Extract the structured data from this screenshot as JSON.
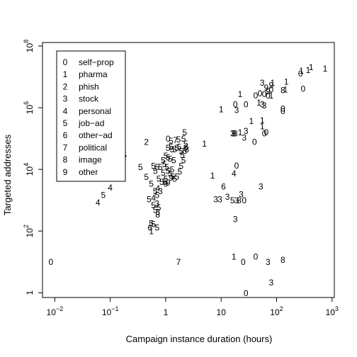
{
  "chart_data": {
    "type": "scatter",
    "marker": "category-digit",
    "xlabel": "Campaign instance duration (hours)",
    "ylabel": "Targeted addresses",
    "xscale": "log10",
    "yscale": "log10",
    "xlim": [
      0.006,
      1100
    ],
    "ylim": [
      0.7,
      130000000
    ],
    "grid": false,
    "legend_position": "top-left",
    "x_ticks": [
      {
        "value": 0.01,
        "base": "10",
        "exp": "−2"
      },
      {
        "value": 0.1,
        "base": "10",
        "exp": "−1"
      },
      {
        "value": 1,
        "base": "1",
        "exp": ""
      },
      {
        "value": 10,
        "base": "10",
        "exp": ""
      },
      {
        "value": 100,
        "base": "10",
        "exp": "2"
      },
      {
        "value": 1000,
        "base": "10",
        "exp": "3"
      }
    ],
    "y_ticks": [
      {
        "value": 1,
        "base": "1",
        "exp": ""
      },
      {
        "value": 100,
        "base": "10",
        "exp": "2"
      },
      {
        "value": 10000,
        "base": "10",
        "exp": "4"
      },
      {
        "value": 1000000,
        "base": "10",
        "exp": "6"
      },
      {
        "value": 100000000,
        "base": "10",
        "exp": "8"
      }
    ],
    "legend": [
      {
        "code": "0",
        "label": "self−prop"
      },
      {
        "code": "1",
        "label": "pharma"
      },
      {
        "code": "2",
        "label": "phish"
      },
      {
        "code": "3",
        "label": "stock"
      },
      {
        "code": "4",
        "label": "personal"
      },
      {
        "code": "5",
        "label": "job−ad"
      },
      {
        "code": "6",
        "label": "other−ad"
      },
      {
        "code": "7",
        "label": "political"
      },
      {
        "code": "8",
        "label": "image"
      },
      {
        "code": "9",
        "label": "other"
      }
    ],
    "points": [
      {
        "x": 0.0085,
        "y": 10,
        "c": "0"
      },
      {
        "x": 28,
        "y": 1,
        "c": "0"
      },
      {
        "x": 25,
        "y": 10,
        "c": "0"
      },
      {
        "x": 42,
        "y": 15,
        "c": "0"
      },
      {
        "x": 17,
        "y": 15,
        "c": "1"
      },
      {
        "x": 70,
        "y": 10,
        "c": "3"
      },
      {
        "x": 130,
        "y": 12,
        "c": "8"
      },
      {
        "x": 80,
        "y": 2.2,
        "c": "3"
      },
      {
        "x": 1.7,
        "y": 10,
        "c": "7"
      },
      {
        "x": 18,
        "y": 250,
        "c": "3"
      },
      {
        "x": 8,
        "y": 1100,
        "c": "3"
      },
      {
        "x": 9.5,
        "y": 1100,
        "c": "3"
      },
      {
        "x": 13,
        "y": 1300,
        "c": "3"
      },
      {
        "x": 16,
        "y": 1000,
        "c": "5"
      },
      {
        "x": 19,
        "y": 1000,
        "c": "3"
      },
      {
        "x": 21,
        "y": 1000,
        "c": "8"
      },
      {
        "x": 23,
        "y": 1600,
        "c": "3"
      },
      {
        "x": 26,
        "y": 1000,
        "c": "0"
      },
      {
        "x": 11,
        "y": 2800,
        "c": "6"
      },
      {
        "x": 52,
        "y": 2800,
        "c": "3"
      },
      {
        "x": 7,
        "y": 6500,
        "c": "1"
      },
      {
        "x": 17,
        "y": 7500,
        "c": "4"
      },
      {
        "x": 19,
        "y": 13500,
        "c": "0"
      },
      {
        "x": 5,
        "y": 70000,
        "c": "1"
      },
      {
        "x": 16,
        "y": 150000,
        "c": "3"
      },
      {
        "x": 17,
        "y": 150000,
        "c": "8"
      },
      {
        "x": 18,
        "y": 150000,
        "c": "8"
      },
      {
        "x": 22,
        "y": 160000,
        "c": "1"
      },
      {
        "x": 28,
        "y": 180000,
        "c": "3"
      },
      {
        "x": 26,
        "y": 110000,
        "c": "3"
      },
      {
        "x": 40,
        "y": 80000,
        "c": "0"
      },
      {
        "x": 55,
        "y": 400000,
        "c": "1"
      },
      {
        "x": 60,
        "y": 150000,
        "c": "0"
      },
      {
        "x": 65,
        "y": 160000,
        "c": "0"
      },
      {
        "x": 35,
        "y": 380000,
        "c": "1"
      },
      {
        "x": 55,
        "y": 250000,
        "c": "1"
      },
      {
        "x": 130,
        "y": 950000,
        "c": "0"
      },
      {
        "x": 130,
        "y": 800000,
        "c": "0"
      },
      {
        "x": 10,
        "y": 900000,
        "c": "1"
      },
      {
        "x": 18,
        "y": 1300000,
        "c": "0"
      },
      {
        "x": 19,
        "y": 850000,
        "c": "3"
      },
      {
        "x": 28,
        "y": 1300000,
        "c": "0"
      },
      {
        "x": 42,
        "y": 2500000,
        "c": "0"
      },
      {
        "x": 50,
        "y": 3000000,
        "c": "0"
      },
      {
        "x": 48,
        "y": 1500000,
        "c": "1"
      },
      {
        "x": 55,
        "y": 1300000,
        "c": "3"
      },
      {
        "x": 60,
        "y": 1200000,
        "c": "3"
      },
      {
        "x": 22,
        "y": 2800000,
        "c": "1"
      },
      {
        "x": 60,
        "y": 2800000,
        "c": "0"
      },
      {
        "x": 70,
        "y": 2500000,
        "c": "0"
      },
      {
        "x": 80,
        "y": 2500000,
        "c": "1"
      },
      {
        "x": 55,
        "y": 6500000,
        "c": "3"
      },
      {
        "x": 65,
        "y": 4500000,
        "c": "9"
      },
      {
        "x": 70,
        "y": 3500000,
        "c": "9"
      },
      {
        "x": 80,
        "y": 5500000,
        "c": "9"
      },
      {
        "x": 85,
        "y": 6500000,
        "c": "1"
      },
      {
        "x": 80,
        "y": 4000000,
        "c": "0"
      },
      {
        "x": 130,
        "y": 3800000,
        "c": "8"
      },
      {
        "x": 145,
        "y": 4000000,
        "c": "1"
      },
      {
        "x": 300,
        "y": 4200000,
        "c": "0"
      },
      {
        "x": 150,
        "y": 7000000,
        "c": "1"
      },
      {
        "x": 270,
        "y": 13000000,
        "c": "0"
      },
      {
        "x": 280,
        "y": 16000000,
        "c": "1"
      },
      {
        "x": 370,
        "y": 17000000,
        "c": "1"
      },
      {
        "x": 420,
        "y": 21000000,
        "c": "1"
      },
      {
        "x": 750,
        "y": 19000000,
        "c": "1"
      },
      {
        "x": 0.18,
        "y": 30000,
        "c": "5"
      },
      {
        "x": 0.15,
        "y": 17000,
        "c": "4"
      },
      {
        "x": 0.1,
        "y": 2600,
        "c": "4"
      },
      {
        "x": 0.075,
        "y": 1500,
        "c": "5"
      },
      {
        "x": 0.06,
        "y": 850,
        "c": "4"
      },
      {
        "x": 0.45,
        "y": 80000,
        "c": "2"
      },
      {
        "x": 0.35,
        "y": 12000,
        "c": "5"
      },
      {
        "x": 0.45,
        "y": 5800,
        "c": "5"
      },
      {
        "x": 0.55,
        "y": 3500,
        "c": "5"
      },
      {
        "x": 0.5,
        "y": 1100,
        "c": "5"
      },
      {
        "x": 0.6,
        "y": 1200,
        "c": "4"
      },
      {
        "x": 0.55,
        "y": 180,
        "c": "5"
      },
      {
        "x": 0.52,
        "y": 130,
        "c": "6"
      },
      {
        "x": 0.55,
        "y": 100,
        "c": "1"
      },
      {
        "x": 0.6,
        "y": 170,
        "c": "5"
      },
      {
        "x": 0.7,
        "y": 130,
        "c": "5"
      },
      {
        "x": 0.6,
        "y": 700,
        "c": "5"
      },
      {
        "x": 0.65,
        "y": 500,
        "c": "5"
      },
      {
        "x": 0.72,
        "y": 420,
        "c": "3"
      },
      {
        "x": 0.7,
        "y": 1500,
        "c": "5"
      },
      {
        "x": 0.65,
        "y": 2000,
        "c": "5"
      },
      {
        "x": 0.72,
        "y": 2500,
        "c": "4"
      },
      {
        "x": 0.6,
        "y": 13000,
        "c": "5"
      },
      {
        "x": 0.65,
        "y": 9000,
        "c": "5"
      },
      {
        "x": 0.7,
        "y": 12000,
        "c": "5"
      },
      {
        "x": 0.8,
        "y": 12000,
        "c": "5"
      },
      {
        "x": 0.9,
        "y": 8000,
        "c": "5"
      },
      {
        "x": 0.85,
        "y": 4000,
        "c": "5"
      },
      {
        "x": 0.95,
        "y": 4000,
        "c": "5"
      },
      {
        "x": 0.75,
        "y": 5000,
        "c": "5"
      },
      {
        "x": 1.0,
        "y": 5000,
        "c": "5"
      },
      {
        "x": 1.0,
        "y": 3500,
        "c": "9"
      },
      {
        "x": 1.1,
        "y": 3800,
        "c": "9"
      },
      {
        "x": 0.8,
        "y": 2000,
        "c": "3"
      },
      {
        "x": 0.7,
        "y": 800,
        "c": "3"
      },
      {
        "x": 0.75,
        "y": 600,
        "c": "5"
      },
      {
        "x": 0.72,
        "y": 350,
        "c": "8"
      },
      {
        "x": 0.9,
        "y": 20000,
        "c": "5"
      },
      {
        "x": 0.95,
        "y": 15000,
        "c": "5"
      },
      {
        "x": 1.05,
        "y": 12000,
        "c": "5"
      },
      {
        "x": 1.1,
        "y": 9000,
        "c": "5"
      },
      {
        "x": 1.2,
        "y": 7500,
        "c": "5"
      },
      {
        "x": 1.3,
        "y": 10000,
        "c": "5"
      },
      {
        "x": 1.25,
        "y": 5500,
        "c": "9"
      },
      {
        "x": 1.35,
        "y": 6000,
        "c": "5"
      },
      {
        "x": 1.45,
        "y": 5000,
        "c": "5"
      },
      {
        "x": 1.6,
        "y": 6000,
        "c": "5"
      },
      {
        "x": 1.0,
        "y": 28000,
        "c": "5"
      },
      {
        "x": 1.1,
        "y": 25000,
        "c": "5"
      },
      {
        "x": 1.2,
        "y": 22000,
        "c": "5"
      },
      {
        "x": 1.4,
        "y": 20000,
        "c": "5"
      },
      {
        "x": 1.9,
        "y": 13000,
        "c": "5"
      },
      {
        "x": 2.1,
        "y": 20000,
        "c": "5"
      },
      {
        "x": 1.8,
        "y": 8500,
        "c": "5"
      },
      {
        "x": 1.1,
        "y": 50000,
        "c": "5"
      },
      {
        "x": 1.25,
        "y": 55000,
        "c": "5"
      },
      {
        "x": 1.3,
        "y": 45000,
        "c": "5"
      },
      {
        "x": 1.45,
        "y": 45000,
        "c": "5"
      },
      {
        "x": 1.6,
        "y": 50000,
        "c": "5"
      },
      {
        "x": 1.75,
        "y": 55000,
        "c": "5"
      },
      {
        "x": 1.9,
        "y": 40000,
        "c": "5"
      },
      {
        "x": 2.0,
        "y": 30000,
        "c": "5"
      },
      {
        "x": 2.2,
        "y": 40000,
        "c": "5"
      },
      {
        "x": 2.3,
        "y": 52000,
        "c": "6"
      },
      {
        "x": 2.4,
        "y": 45000,
        "c": "8"
      },
      {
        "x": 1.1,
        "y": 100000,
        "c": "0"
      },
      {
        "x": 1.25,
        "y": 85000,
        "c": "5"
      },
      {
        "x": 1.5,
        "y": 90000,
        "c": "7"
      },
      {
        "x": 1.7,
        "y": 95000,
        "c": "5"
      },
      {
        "x": 2.1,
        "y": 100000,
        "c": "5"
      },
      {
        "x": 2.3,
        "y": 70000,
        "c": "5"
      },
      {
        "x": 2.2,
        "y": 160000,
        "c": "5"
      }
    ]
  }
}
